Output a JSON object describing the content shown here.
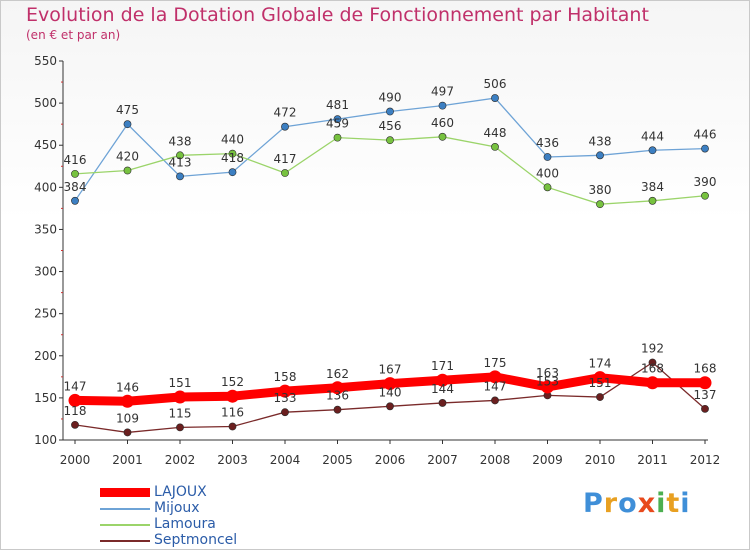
{
  "title": "Evolution de la Dotation Globale de Fonctionnement par Habitant",
  "subtitle": "(en € et par an)",
  "logo": {
    "text": "Proxiti",
    "letter_colors": [
      "#3f8fd8",
      "#e8a021",
      "#3f8fd8",
      "#e84a1c",
      "#4caf50",
      "#e8a021",
      "#3f8fd8"
    ]
  },
  "chart_data": {
    "type": "line",
    "x": [
      "2000",
      "2001",
      "2002",
      "2003",
      "2004",
      "2005",
      "2006",
      "2007",
      "2008",
      "2009",
      "2010",
      "2011",
      "2012"
    ],
    "ylim": [
      100,
      550
    ],
    "yticks": [
      "100",
      "150",
      "200",
      "250",
      "300",
      "350",
      "400",
      "450",
      "500",
      "550"
    ],
    "grid": false,
    "legend_placement": "bottom-left",
    "series": [
      {
        "name": "LAJOUX",
        "color": "#ff0000",
        "emphasis": true,
        "values": [
          147,
          146,
          151,
          152,
          158,
          162,
          167,
          171,
          175,
          163,
          174,
          168,
          168
        ],
        "labels": [
          "147",
          "146",
          "151",
          "152",
          "158",
          "162",
          "167",
          "171",
          "175",
          "163",
          "174",
          "168",
          "168"
        ]
      },
      {
        "name": "Mijoux",
        "color": "#6ea3d6",
        "marker_color": "#3c7fc2",
        "values": [
          384,
          475,
          413,
          418,
          472,
          481,
          490,
          497,
          506,
          436,
          438,
          444,
          446
        ],
        "labels": [
          "384",
          "475",
          "413",
          "418",
          "472",
          "481",
          "490",
          "497",
          "506",
          "436",
          "438",
          "444",
          "446"
        ]
      },
      {
        "name": "Lamoura",
        "color": "#9bd46a",
        "marker_color": "#77c23f",
        "values": [
          416,
          420,
          438,
          440,
          417,
          459,
          456,
          460,
          448,
          400,
          380,
          384,
          390
        ],
        "labels": [
          "416",
          "420",
          "438",
          "440",
          "417",
          "459",
          "456",
          "460",
          "448",
          "400",
          "380",
          "384",
          "390"
        ]
      },
      {
        "name": "Septmoncel",
        "color": "#7a2a2a",
        "marker_color": "#6b1f1f",
        "values": [
          118,
          109,
          115,
          116,
          133,
          136,
          140,
          144,
          147,
          153,
          151,
          192,
          137
        ],
        "labels": [
          "118",
          "109",
          "115",
          "116",
          "133",
          "136",
          "140",
          "144",
          "147",
          "153",
          "151",
          "192",
          "137"
        ]
      }
    ]
  }
}
